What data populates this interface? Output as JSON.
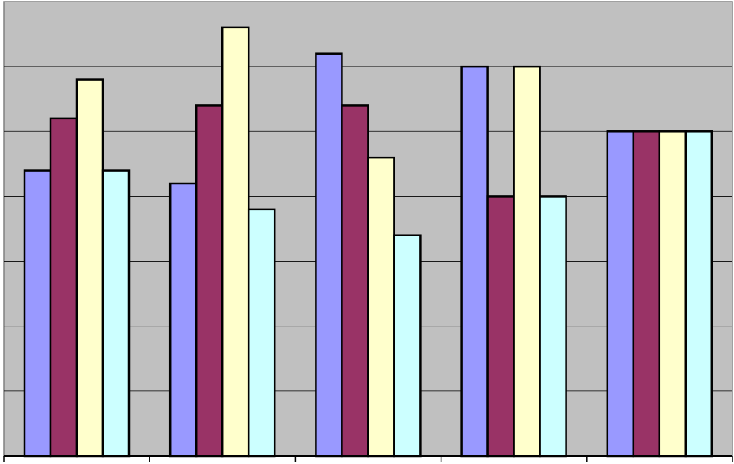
{
  "chart_data": {
    "type": "bar",
    "title": "",
    "xlabel": "",
    "ylabel": "",
    "categories": [
      "",
      "",
      "",
      "",
      ""
    ],
    "ylim": [
      0,
      3.5
    ],
    "ytick_step": 0.5,
    "grid": true,
    "legend": "none",
    "series": [
      {
        "color": "#9999ff",
        "values": [
          2.2,
          2.1,
          3.1,
          3.0,
          2.5
        ]
      },
      {
        "color": "#993366",
        "values": [
          2.6,
          2.7,
          2.7,
          2.0,
          2.5
        ]
      },
      {
        "color": "#ffffcc",
        "values": [
          2.9,
          3.3,
          2.3,
          3.0,
          2.5
        ]
      },
      {
        "color": "#ccffff",
        "values": [
          2.2,
          1.9,
          1.7,
          2.0,
          2.5
        ]
      }
    ]
  },
  "colors": {
    "plot_background": "#c0c0c0",
    "gridline": "#000000",
    "bar_outline": "#000000"
  }
}
